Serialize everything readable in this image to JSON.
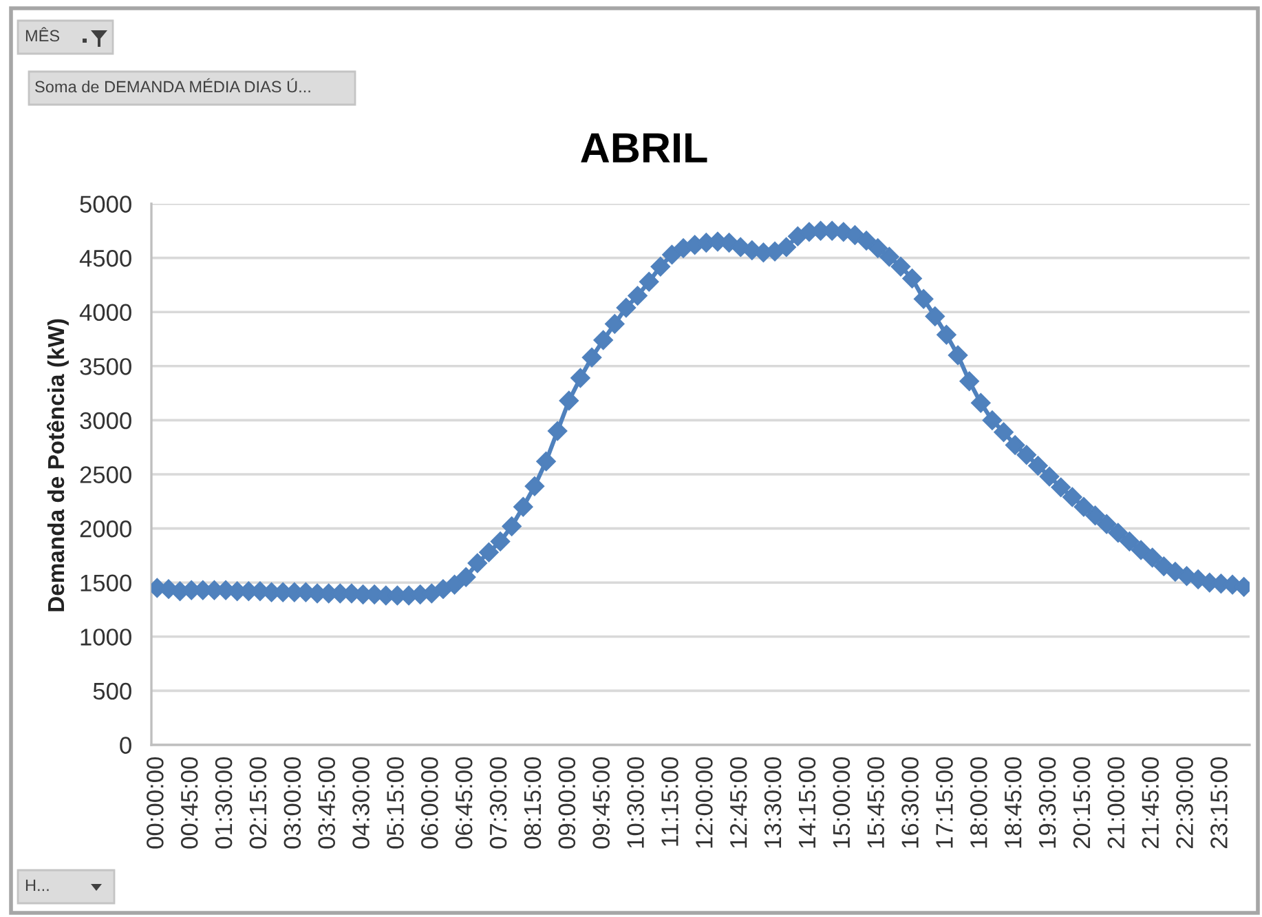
{
  "chart_data": {
    "type": "line",
    "title": "ABRIL",
    "ylabel": "Demanda de Potência (kW)",
    "annotations": [
      "MÊS",
      "Soma de DEMANDA MÉDIA DIAS Ú...",
      "H..."
    ],
    "categories": [
      "00:00:00",
      null,
      null,
      "00:45:00",
      null,
      null,
      "01:30:00",
      null,
      null,
      "02:15:00",
      null,
      null,
      "03:00:00",
      null,
      null,
      "03:45:00",
      null,
      null,
      "04:30:00",
      null,
      null,
      "05:15:00",
      null,
      null,
      "06:00:00",
      null,
      null,
      "06:45:00",
      null,
      null,
      "07:30:00",
      null,
      null,
      "08:15:00",
      null,
      null,
      "09:00:00",
      null,
      null,
      "09:45:00",
      null,
      null,
      "10:30:00",
      null,
      null,
      "11:15:00",
      null,
      null,
      "12:00:00",
      null,
      null,
      "12:45:00",
      null,
      null,
      "13:30:00",
      null,
      null,
      "14:15:00",
      null,
      null,
      "15:00:00",
      null,
      null,
      "15:45:00",
      null,
      null,
      "16:30:00",
      null,
      null,
      "17:15:00",
      null,
      null,
      "18:00:00",
      null,
      null,
      "18:45:00",
      null,
      null,
      "19:30:00",
      null,
      null,
      "20:15:00",
      null,
      null,
      "21:00:00",
      null,
      null,
      "21:45:00",
      null,
      null,
      "22:30:00",
      null,
      null,
      "23:15:00",
      null,
      null
    ],
    "values": [
      1450,
      1440,
      1420,
      1430,
      1430,
      1430,
      1430,
      1420,
      1420,
      1420,
      1410,
      1410,
      1410,
      1410,
      1400,
      1400,
      1400,
      1400,
      1390,
      1390,
      1380,
      1380,
      1380,
      1390,
      1400,
      1440,
      1480,
      1550,
      1680,
      1780,
      1880,
      2020,
      2200,
      2390,
      2620,
      2900,
      3180,
      3390,
      3580,
      3740,
      3890,
      4040,
      4150,
      4280,
      4420,
      4530,
      4590,
      4620,
      4640,
      4650,
      4640,
      4600,
      4570,
      4550,
      4560,
      4600,
      4700,
      4740,
      4750,
      4750,
      4740,
      4710,
      4660,
      4590,
      4510,
      4420,
      4310,
      4120,
      3960,
      3790,
      3600,
      3360,
      3160,
      3000,
      2890,
      2770,
      2680,
      2580,
      2480,
      2380,
      2290,
      2200,
      2120,
      2040,
      1960,
      1880,
      1800,
      1730,
      1650,
      1600,
      1560,
      1530,
      1500,
      1490,
      1480,
      1460
    ],
    "color": "#4f81bd",
    "marker": "diamond",
    "line_style": "solid",
    "ylim": [
      0,
      5000
    ],
    "yticks": [
      0,
      500,
      1000,
      1500,
      2000,
      2500,
      3000,
      3500,
      4000,
      4500,
      5000
    ],
    "grid": "y"
  }
}
